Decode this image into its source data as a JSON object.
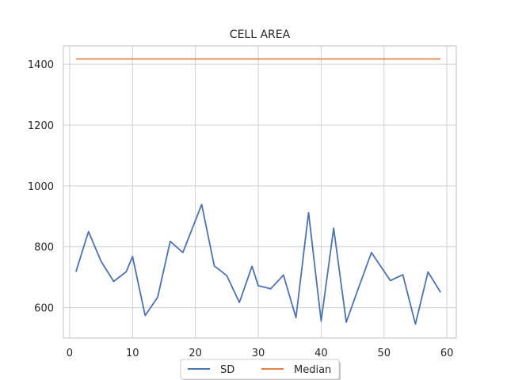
{
  "chart_data": {
    "type": "line",
    "title": "CELL AREA",
    "xlabel": "",
    "ylabel": "",
    "xlim": [
      -1,
      61.5
    ],
    "ylim": [
      500,
      1460
    ],
    "xticks": [
      0,
      10,
      20,
      30,
      40,
      50,
      60
    ],
    "yticks": [
      600,
      800,
      1000,
      1200,
      1400
    ],
    "grid": true,
    "legend_position": "bottom-center",
    "series": [
      {
        "name": "SD",
        "color": "#4c72b0",
        "x": [
          1,
          3,
          5,
          7,
          9,
          10,
          12,
          14,
          16,
          18,
          21,
          23,
          25,
          27,
          29,
          30,
          32,
          34,
          36,
          38,
          40,
          42,
          44,
          46,
          48,
          51,
          53,
          55,
          57,
          59
        ],
        "y": [
          718,
          850,
          752,
          686,
          718,
          768,
          574,
          634,
          818,
          781,
          939,
          737,
          705,
          617,
          736,
          672,
          662,
          707,
          567,
          912,
          556,
          861,
          552,
          668,
          781,
          689,
          708,
          546,
          717,
          650
        ]
      },
      {
        "name": "Median",
        "color": "#dd8452",
        "x": [
          1,
          59
        ],
        "y": [
          1417,
          1417
        ]
      }
    ]
  }
}
